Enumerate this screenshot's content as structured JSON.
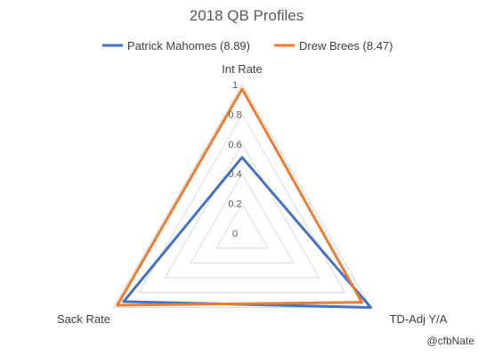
{
  "chart_data": {
    "type": "radar",
    "title": "2018 QB Profiles",
    "axes": [
      "Int Rate",
      "TD-Adj Y/A",
      "Sack Rate"
    ],
    "rlim": [
      0,
      1
    ],
    "ticks": [
      "0",
      "0.2",
      "0.4",
      "0.6",
      "0.8",
      "1"
    ],
    "grid": true,
    "legend_position": "top",
    "series": [
      {
        "name": "Patrick Mahomes (8.89)",
        "color": "#4472C4",
        "values": [
          0.51,
          1.0,
          0.92
        ]
      },
      {
        "name": "Drew Brees (8.47)",
        "color": "#ED7D31",
        "values": [
          0.97,
          0.93,
          0.97
        ]
      }
    ],
    "credit": "@cfbNate"
  }
}
